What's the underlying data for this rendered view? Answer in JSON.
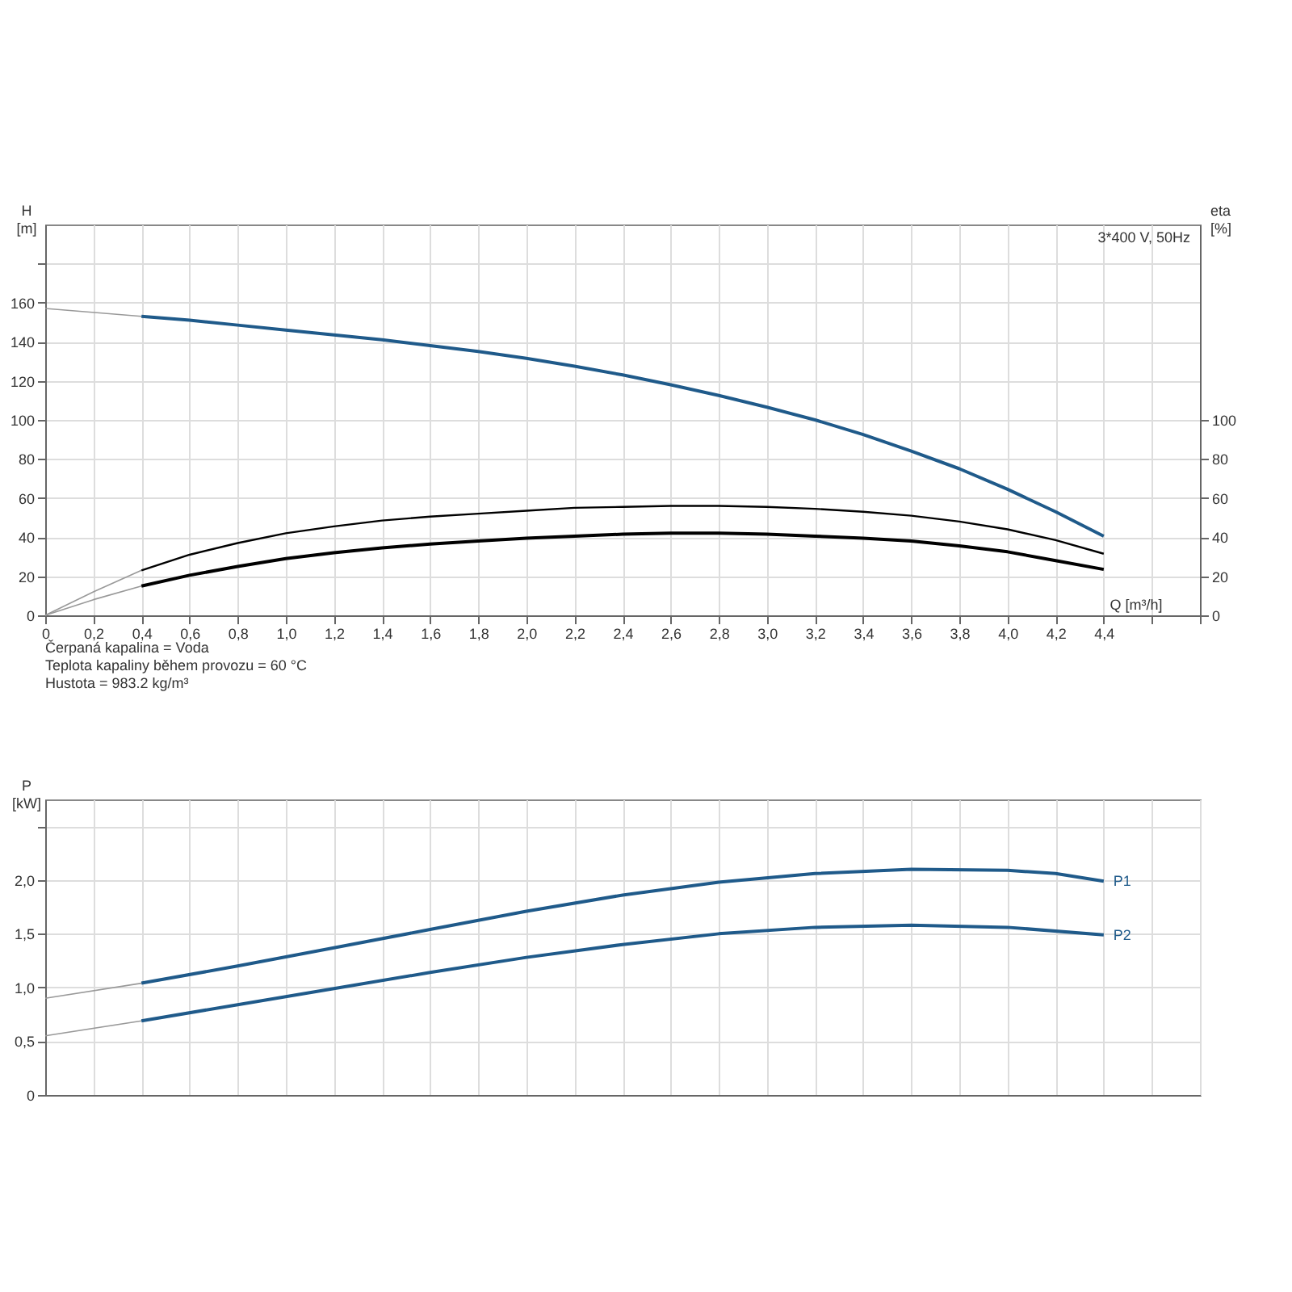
{
  "chart_data": [
    {
      "type": "line",
      "title": "3*400 V, 50Hz",
      "xlabel": "Q [m³/h]",
      "ylabel": "H [m]",
      "y2label": "eta [%]",
      "xlim": [
        0,
        4.8
      ],
      "xticks": [
        0,
        {
          "value": 0.2,
          "label": "0,2"
        },
        {
          "value": 0.4,
          "label": "0,4"
        },
        {
          "value": 0.6,
          "label": "0,6"
        },
        {
          "value": 0.8,
          "label": "0,8"
        },
        {
          "value": 1.0,
          "label": "1,0"
        },
        {
          "value": 1.2,
          "label": "1,2"
        },
        {
          "value": 1.4,
          "label": "1,4"
        },
        {
          "value": 1.6,
          "label": "1,6"
        },
        {
          "value": 1.8,
          "label": "1,8"
        },
        {
          "value": 2.0,
          "label": "2,0"
        },
        {
          "value": 2.2,
          "label": "2,2"
        },
        {
          "value": 2.4,
          "label": "2,4"
        },
        {
          "value": 2.6,
          "label": "2,6"
        },
        {
          "value": 2.8,
          "label": "2,8"
        },
        {
          "value": 3.0,
          "label": "3,0"
        },
        {
          "value": 3.2,
          "label": "3,2"
        },
        {
          "value": 3.4,
          "label": "3,4"
        },
        {
          "value": 3.6,
          "label": "3,6"
        },
        {
          "value": 3.8,
          "label": "3,8"
        },
        {
          "value": 4.0,
          "label": "4,0"
        },
        {
          "value": 4.2,
          "label": "4,2"
        },
        {
          "value": 4.4,
          "label": "4,4"
        },
        {
          "value": 4.6,
          "label": null
        },
        {
          "value": 4.8,
          "label": null
        }
      ],
      "ylim": [
        0,
        200
      ],
      "yticks": [
        0,
        20,
        40,
        60,
        80,
        100,
        120,
        140,
        160,
        {
          "value": 180,
          "label": null
        }
      ],
      "y2lim": [
        0,
        200
      ],
      "y2ticks": [
        0,
        20,
        40,
        60,
        80,
        100
      ],
      "grid": true,
      "marker": "none",
      "line_style": "solid",
      "series": [
        {
          "color": "#999999",
          "x": [
            0,
            0.4
          ],
          "values": [
            157,
            153
          ]
        },
        {
          "color": "#1f5a8a",
          "x": [
            0.4,
            0.6,
            0.8,
            1.0,
            1.2,
            1.4,
            1.6,
            1.8,
            2.0,
            2.2,
            2.4,
            2.6,
            2.8,
            3.0,
            3.2,
            3.4,
            3.6,
            3.8,
            4.0,
            4.2,
            4.4
          ],
          "values": [
            153,
            151,
            148.5,
            146,
            143.5,
            141,
            138,
            135,
            131.5,
            127.5,
            123,
            118,
            112.5,
            106.5,
            100,
            92.5,
            84,
            75,
            64.5,
            53,
            40.5
          ]
        },
        {
          "color": "#999999",
          "axis": "y2",
          "x": [
            0,
            0.2,
            0.4
          ],
          "values": [
            0,
            12,
            23
          ]
        },
        {
          "color": "#000000",
          "axis": "y2",
          "x": [
            0.4,
            0.6,
            0.8,
            1.0,
            1.2,
            1.4,
            1.6,
            1.8,
            2.0,
            2.2,
            2.4,
            2.6,
            2.8,
            3.0,
            3.2,
            3.4,
            3.6,
            3.8,
            4.0,
            4.2,
            4.4
          ],
          "values": [
            23,
            31,
            37,
            42,
            45.5,
            48.5,
            50.5,
            52,
            53.5,
            55,
            55.5,
            56,
            56,
            55.5,
            54.5,
            53,
            51,
            48,
            44,
            38.5,
            31.5
          ]
        },
        {
          "color": "#999999",
          "axis": "y2",
          "x": [
            0,
            0.2,
            0.4
          ],
          "values": [
            0,
            8,
            15
          ]
        },
        {
          "color": "#000000",
          "axis": "y2",
          "x": [
            0.4,
            0.6,
            0.8,
            1.0,
            1.2,
            1.4,
            1.6,
            1.8,
            2.0,
            2.2,
            2.4,
            2.6,
            2.8,
            3.0,
            3.2,
            3.4,
            3.6,
            3.8,
            4.0,
            4.2,
            4.4
          ],
          "values": [
            15,
            20.5,
            25,
            29,
            32,
            34.5,
            36.5,
            38,
            39.5,
            40.5,
            41.5,
            42,
            42,
            41.5,
            40.5,
            39.5,
            38,
            35.5,
            32.5,
            28,
            23.5
          ]
        }
      ],
      "annotations": [
        "Čerpaná kapalina = Voda",
        "Teplota kapaliny během provozu = 60 °C",
        "Hustota = 983.2 kg/m³"
      ]
    },
    {
      "type": "line",
      "ylabel": "P [kW]",
      "tick_labels": "y",
      "xlim": [
        0,
        4.8
      ],
      "xticks": [
        0,
        0.2,
        0.4,
        0.6,
        0.8,
        1.0,
        1.2,
        1.4,
        1.6,
        1.8,
        2.0,
        2.2,
        2.4,
        2.6,
        2.8,
        3.0,
        3.2,
        3.4,
        3.6,
        3.8,
        4.0,
        4.2,
        4.4,
        4.6,
        4.8
      ],
      "ylim": [
        0,
        2.75
      ],
      "yticks": [
        0,
        {
          "value": 0.5,
          "label": "0,5"
        },
        {
          "value": 1.0,
          "label": "1,0"
        },
        {
          "value": 1.5,
          "label": "1,5"
        },
        {
          "value": 2.0,
          "label": "2,0"
        },
        {
          "value": 2.5,
          "label": null
        }
      ],
      "grid": true,
      "marker": "none",
      "line_style": "solid",
      "series": [
        {
          "color": "#999999",
          "x": [
            0,
            0.4
          ],
          "values": [
            0.9,
            1.04
          ]
        },
        {
          "color": "#999999",
          "x": [
            0,
            0.4
          ],
          "values": [
            0.55,
            0.69
          ]
        },
        {
          "name": "P1",
          "color": "#1f5a8a",
          "x": [
            0.4,
            0.8,
            1.2,
            1.6,
            2.0,
            2.4,
            2.8,
            3.2,
            3.6,
            4.0,
            4.2,
            4.4
          ],
          "values": [
            1.04,
            1.2,
            1.37,
            1.54,
            1.71,
            1.86,
            1.98,
            2.06,
            2.1,
            2.09,
            2.06,
            1.99
          ]
        },
        {
          "name": "P2",
          "color": "#1f5a8a",
          "x": [
            0.4,
            0.8,
            1.2,
            1.6,
            2.0,
            2.4,
            2.8,
            3.2,
            3.6,
            4.0,
            4.4
          ],
          "values": [
            0.69,
            0.84,
            0.99,
            1.14,
            1.28,
            1.4,
            1.5,
            1.56,
            1.58,
            1.56,
            1.49
          ]
        }
      ]
    }
  ]
}
